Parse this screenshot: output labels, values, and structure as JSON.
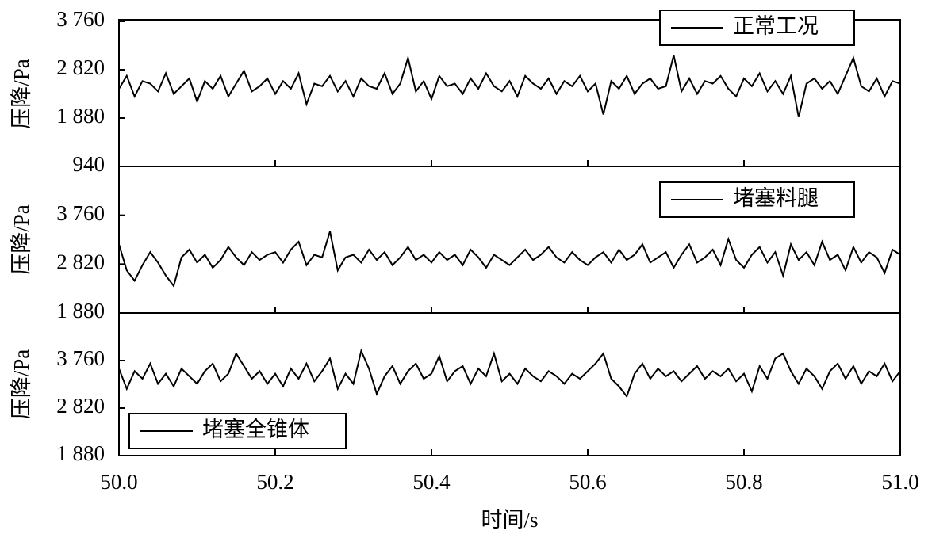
{
  "chart_data": [
    {
      "type": "line",
      "y_label": "压降/Pa",
      "legend": "upper right",
      "x": [
        50,
        50.01,
        50.02,
        50.03,
        50.04,
        50.05,
        50.06,
        50.07,
        50.08,
        50.09,
        50.1,
        50.11,
        50.12,
        50.13,
        50.14,
        50.15,
        50.16,
        50.17,
        50.18,
        50.19,
        50.2,
        50.21,
        50.22,
        50.23,
        50.24,
        50.25,
        50.26,
        50.27,
        50.28,
        50.29,
        50.3,
        50.31,
        50.32,
        50.33,
        50.34,
        50.35,
        50.36,
        50.37,
        50.38,
        50.39,
        50.4,
        50.41,
        50.42,
        50.43,
        50.44,
        50.45,
        50.46,
        50.47,
        50.48,
        50.49,
        50.5,
        50.51,
        50.52,
        50.53,
        50.54,
        50.55,
        50.56,
        50.57,
        50.58,
        50.59,
        50.6,
        50.61,
        50.62,
        50.63,
        50.64,
        50.65,
        50.66,
        50.67,
        50.68,
        50.69,
        50.7,
        50.71,
        50.72,
        50.73,
        50.74,
        50.75,
        50.76,
        50.77,
        50.78,
        50.79,
        50.8,
        50.81,
        50.82,
        50.83,
        50.84,
        50.85,
        50.86,
        50.87,
        50.88,
        50.89,
        50.9,
        50.91,
        50.92,
        50.93,
        50.94,
        50.95,
        50.96,
        50.97,
        50.98,
        50.99,
        51
      ],
      "series": [
        {
          "name": "正常工况",
          "color": "#000000",
          "values": [
            2450,
            2700,
            2300,
            2600,
            2550,
            2400,
            2750,
            2350,
            2500,
            2650,
            2200,
            2600,
            2450,
            2700,
            2300,
            2550,
            2800,
            2400,
            2500,
            2650,
            2350,
            2600,
            2450,
            2750,
            2150,
            2550,
            2500,
            2700,
            2400,
            2600,
            2300,
            2650,
            2500,
            2450,
            2750,
            2350,
            2550,
            3050,
            2400,
            2600,
            2250,
            2700,
            2500,
            2550,
            2350,
            2650,
            2450,
            2750,
            2500,
            2400,
            2600,
            2300,
            2700,
            2550,
            2450,
            2650,
            2350,
            2600,
            2500,
            2700,
            2400,
            2550,
            1950,
            2600,
            2450,
            2700,
            2350,
            2550,
            2650,
            2450,
            2500,
            3100,
            2400,
            2650,
            2350,
            2600,
            2550,
            2700,
            2450,
            2300,
            2650,
            2500,
            2750,
            2400,
            2600,
            2350,
            2700,
            1900,
            2550,
            2650,
            2450,
            2600,
            2350,
            2700,
            3050,
            2500,
            2400,
            2650,
            2300,
            2600,
            2550
          ]
        }
      ],
      "ylim": [
        940,
        3760
      ],
      "yticks": [
        940,
        {
          "value": 1880,
          "label": "1 880"
        },
        {
          "value": 2820,
          "label": "2 820"
        },
        {
          "value": 3760,
          "label": "3 760"
        }
      ]
    },
    {
      "type": "line",
      "y_label": "压降/Pa",
      "legend": "upper right",
      "x": [
        50,
        50.01,
        50.02,
        50.03,
        50.04,
        50.05,
        50.06,
        50.07,
        50.08,
        50.09,
        50.1,
        50.11,
        50.12,
        50.13,
        50.14,
        50.15,
        50.16,
        50.17,
        50.18,
        50.19,
        50.2,
        50.21,
        50.22,
        50.23,
        50.24,
        50.25,
        50.26,
        50.27,
        50.28,
        50.29,
        50.3,
        50.31,
        50.32,
        50.33,
        50.34,
        50.35,
        50.36,
        50.37,
        50.38,
        50.39,
        50.4,
        50.41,
        50.42,
        50.43,
        50.44,
        50.45,
        50.46,
        50.47,
        50.48,
        50.49,
        50.5,
        50.51,
        50.52,
        50.53,
        50.54,
        50.55,
        50.56,
        50.57,
        50.58,
        50.59,
        50.6,
        50.61,
        50.62,
        50.63,
        50.64,
        50.65,
        50.66,
        50.67,
        50.68,
        50.69,
        50.7,
        50.71,
        50.72,
        50.73,
        50.74,
        50.75,
        50.76,
        50.77,
        50.78,
        50.79,
        50.8,
        50.81,
        50.82,
        50.83,
        50.84,
        50.85,
        50.86,
        50.87,
        50.88,
        50.89,
        50.9,
        50.91,
        50.92,
        50.93,
        50.94,
        50.95,
        50.96,
        50.97,
        50.98,
        50.99,
        51
      ],
      "series": [
        {
          "name": "堵塞料腿",
          "color": "#000000",
          "values": [
            3200,
            2700,
            2500,
            2800,
            3050,
            2850,
            2600,
            2400,
            2950,
            3100,
            2850,
            3000,
            2750,
            2900,
            3150,
            2950,
            2800,
            3050,
            2900,
            3000,
            3050,
            2850,
            3100,
            3250,
            2800,
            3000,
            2950,
            3450,
            2700,
            2950,
            3000,
            2850,
            3100,
            2900,
            3050,
            2800,
            2950,
            3150,
            2900,
            3000,
            2850,
            3050,
            2900,
            3000,
            2800,
            3100,
            2950,
            2750,
            3000,
            2900,
            2800,
            2950,
            3100,
            2900,
            3000,
            3150,
            2950,
            2850,
            3050,
            2900,
            2800,
            2950,
            3050,
            2850,
            3100,
            2900,
            3000,
            3200,
            2850,
            2950,
            3050,
            2750,
            3000,
            3200,
            2850,
            2950,
            3100,
            2800,
            3300,
            2900,
            2750,
            3000,
            3150,
            2850,
            3050,
            2600,
            3200,
            2900,
            3050,
            2800,
            3250,
            2900,
            3000,
            2700,
            3150,
            2850,
            3050,
            2950,
            2650,
            3100,
            3000
          ]
        }
      ],
      "ylim": [
        1880,
        4700
      ],
      "yticks": [
        {
          "value": 1880,
          "label": "1 880"
        },
        {
          "value": 2820,
          "label": "2 820"
        },
        {
          "value": 3760,
          "label": "3 760"
        }
      ]
    },
    {
      "type": "line",
      "y_label": "压降/Pa",
      "x_label": "时间/s",
      "legend": "lower left",
      "x": [
        50,
        50.01,
        50.02,
        50.03,
        50.04,
        50.05,
        50.06,
        50.07,
        50.08,
        50.09,
        50.1,
        50.11,
        50.12,
        50.13,
        50.14,
        50.15,
        50.16,
        50.17,
        50.18,
        50.19,
        50.2,
        50.21,
        50.22,
        50.23,
        50.24,
        50.25,
        50.26,
        50.27,
        50.28,
        50.29,
        50.3,
        50.31,
        50.32,
        50.33,
        50.34,
        50.35,
        50.36,
        50.37,
        50.38,
        50.39,
        50.4,
        50.41,
        50.42,
        50.43,
        50.44,
        50.45,
        50.46,
        50.47,
        50.48,
        50.49,
        50.5,
        50.51,
        50.52,
        50.53,
        50.54,
        50.55,
        50.56,
        50.57,
        50.58,
        50.59,
        50.6,
        50.61,
        50.62,
        50.63,
        50.64,
        50.65,
        50.66,
        50.67,
        50.68,
        50.69,
        50.7,
        50.71,
        50.72,
        50.73,
        50.74,
        50.75,
        50.76,
        50.77,
        50.78,
        50.79,
        50.8,
        50.81,
        50.82,
        50.83,
        50.84,
        50.85,
        50.86,
        50.87,
        50.88,
        50.89,
        50.9,
        50.91,
        50.92,
        50.93,
        50.94,
        50.95,
        50.96,
        50.97,
        50.98,
        50.99,
        51
      ],
      "series": [
        {
          "name": "堵塞全锥体",
          "color": "#000000",
          "values": [
            3600,
            3200,
            3550,
            3400,
            3700,
            3300,
            3500,
            3250,
            3600,
            3450,
            3300,
            3550,
            3700,
            3350,
            3500,
            3900,
            3650,
            3400,
            3550,
            3300,
            3500,
            3250,
            3600,
            3400,
            3700,
            3350,
            3550,
            3800,
            3200,
            3500,
            3300,
            3950,
            3600,
            3100,
            3450,
            3650,
            3300,
            3550,
            3700,
            3400,
            3500,
            3850,
            3350,
            3550,
            3650,
            3300,
            3600,
            3450,
            3900,
            3350,
            3500,
            3300,
            3600,
            3450,
            3350,
            3550,
            3450,
            3300,
            3500,
            3400,
            3550,
            3700,
            3900,
            3400,
            3250,
            3050,
            3500,
            3700,
            3400,
            3600,
            3450,
            3550,
            3350,
            3500,
            3650,
            3400,
            3550,
            3450,
            3600,
            3350,
            3500,
            3150,
            3650,
            3400,
            3800,
            3900,
            3550,
            3300,
            3600,
            3450,
            3200,
            3550,
            3700,
            3400,
            3650,
            3300,
            3550,
            3450,
            3700,
            3350,
            3550
          ]
        }
      ],
      "ylim": [
        1880,
        4700
      ],
      "yticks": [
        {
          "value": 1880,
          "label": "1 880"
        },
        {
          "value": 2820,
          "label": "2 820"
        },
        {
          "value": 3760,
          "label": "3 760"
        }
      ],
      "xlim": [
        50,
        51
      ],
      "xticks": [
        {
          "value": 50,
          "label": "50.0"
        },
        50.2,
        50.4,
        50.6,
        50.8,
        {
          "value": 51,
          "label": "51.0"
        }
      ]
    }
  ]
}
